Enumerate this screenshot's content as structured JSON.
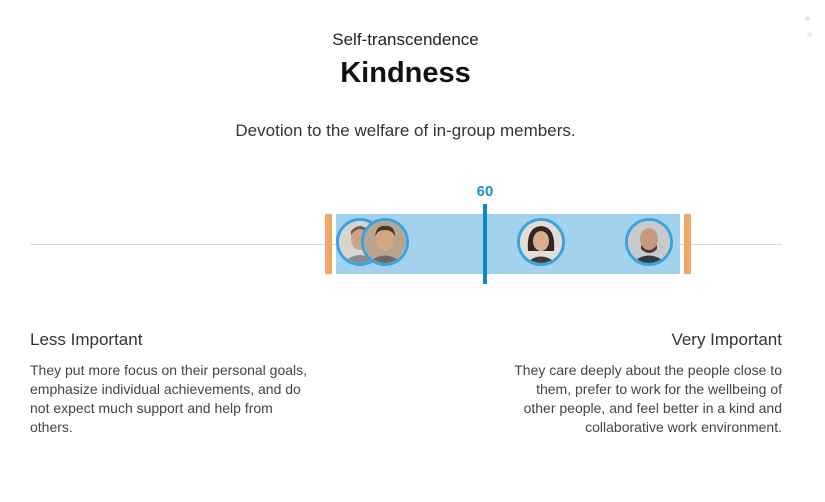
{
  "header": {
    "category": "Self-transcendence",
    "title": "Kindness",
    "description": "Devotion to the welfare of in-group members."
  },
  "scale": {
    "score": 60,
    "score_label": "60",
    "min": 0,
    "max": 100,
    "range": [
      34,
      81
    ],
    "avatars": [
      {
        "name": "person-1",
        "position": 38
      },
      {
        "name": "person-2",
        "position": 41
      },
      {
        "name": "person-3",
        "position": 58
      },
      {
        "name": "person-4",
        "position": 72
      }
    ],
    "colors": {
      "range": "#a3d2ef",
      "range_caps": "#f0a868",
      "score_line": "#0b88c9",
      "avatar_ring": "#3aa3dd"
    }
  },
  "low": {
    "title": "Less Important",
    "description": "They put more focus on their personal goals, emphasize individual achievements, and do not expect much support and help from others."
  },
  "high": {
    "title": "Very Important",
    "description": "They care deeply about the people close to them, prefer to work for the wellbeing of other people, and feel better in a kind and collaborative work environment."
  }
}
